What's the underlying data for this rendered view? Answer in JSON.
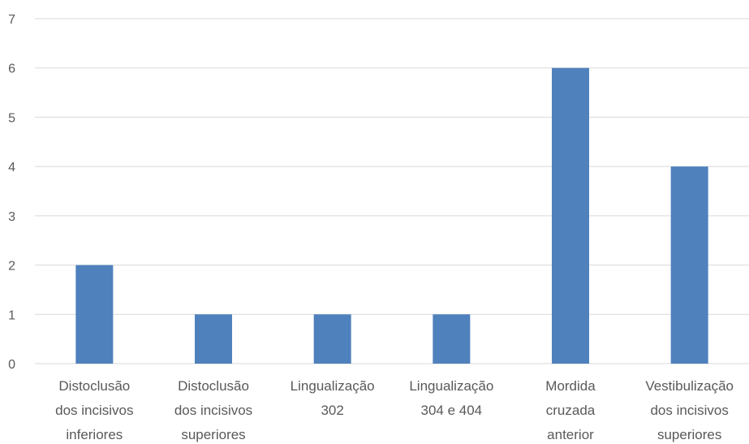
{
  "chart_data": {
    "type": "bar",
    "title": "",
    "xlabel": "",
    "ylabel": "",
    "ylim": [
      0,
      7
    ],
    "yticks": [
      0,
      1,
      2,
      3,
      4,
      5,
      6,
      7
    ],
    "grid": true,
    "legend": "none",
    "bar_color": "#4f81bd",
    "categories": [
      [
        "Distoclusão",
        "dos incisivos",
        "inferiores"
      ],
      [
        "Distoclusão",
        "dos incisivos",
        "superiores"
      ],
      [
        "Lingualização",
        "302"
      ],
      [
        "Lingualização",
        "304 e 404"
      ],
      [
        "Mordida",
        "cruzada",
        "anterior"
      ],
      [
        "Vestibulização",
        "dos incisivos",
        "superiores"
      ]
    ],
    "values": [
      2,
      1,
      1,
      1,
      6,
      4
    ]
  }
}
